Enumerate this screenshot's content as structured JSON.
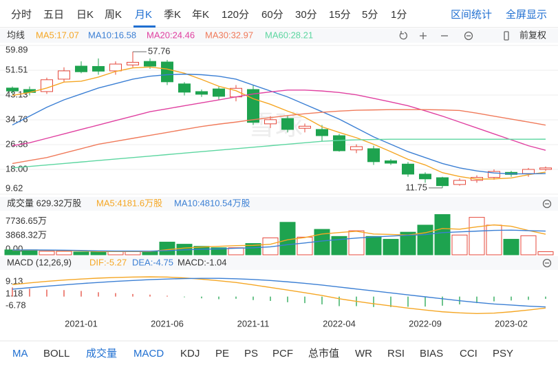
{
  "tabs": {
    "items": [
      "分时",
      "五日",
      "日K",
      "周K",
      "月K",
      "季K",
      "年K",
      "120分",
      "60分",
      "30分",
      "15分",
      "5分",
      "1分"
    ],
    "active": 4,
    "right": [
      "区间统计",
      "全屏显示"
    ]
  },
  "adjust": "前复权",
  "watermark": "雪球",
  "panel_title": "均线",
  "chart_data": [
    {
      "type": "candlestick",
      "categories": [
        null,
        null,
        null,
        null,
        "2021-01",
        null,
        null,
        null,
        null,
        "2021-06",
        null,
        null,
        null,
        null,
        "2021-11",
        null,
        null,
        null,
        null,
        "2022-04",
        null,
        null,
        null,
        null,
        "2022-09",
        null,
        null,
        null,
        null,
        "2023-02",
        null,
        null
      ],
      "open": [
        45.5,
        45,
        44.3,
        48.5,
        52.9,
        52.8,
        51.3,
        53.3,
        54.5,
        54.3,
        46.9,
        44.3,
        45.2,
        42.5,
        45,
        33.4,
        35.2,
        31.9,
        31.5,
        29.4,
        24.6,
        25,
        20.9,
        19.8,
        16.4,
        15.2,
        12.9,
        14.3,
        15.3,
        17,
        16.6,
        18
      ],
      "high": [
        46,
        46,
        49,
        52.5,
        54.5,
        55.5,
        54.5,
        57.76,
        55.5,
        55,
        47.5,
        45,
        46,
        46.5,
        46.5,
        36,
        36.2,
        33.5,
        33,
        30,
        26.5,
        26,
        21.5,
        20.5,
        17,
        15.5,
        15,
        16,
        18,
        17.5,
        18.5,
        19
      ],
      "low": [
        43.5,
        43,
        43.5,
        47.5,
        50.5,
        50,
        50,
        52.5,
        52,
        46.5,
        43,
        42.5,
        41.5,
        41,
        33,
        32,
        30.5,
        30.5,
        27.5,
        24,
        23.5,
        19.5,
        19.5,
        15.5,
        13.5,
        11.75,
        12.5,
        13.5,
        14.5,
        15.5,
        15.5,
        17.5
      ],
      "close": [
        44.5,
        44,
        48.3,
        51.3,
        51,
        51.2,
        53.6,
        54.2,
        52.9,
        47.6,
        44.1,
        43.4,
        42.7,
        45.4,
        33.9,
        34.8,
        31.5,
        32.6,
        29.4,
        24.3,
        25.7,
        20.6,
        20.1,
        16.4,
        14.8,
        12.5,
        14.3,
        15.3,
        17.3,
        16.3,
        18,
        18.5
      ],
      "up_color": "#e5473a",
      "down_color": "#1ea34f",
      "high_label_index": 7,
      "low_label_index": 25,
      "series": [
        {
          "name": "MA5:17.07",
          "color": "#f5a623",
          "values": [
            43,
            44,
            45.5,
            47.5,
            47.8,
            49.2,
            51.1,
            52.3,
            52.6,
            51.9,
            50.5,
            48.4,
            46.1,
            44.6,
            41.9,
            40,
            37.7,
            35.6,
            32.4,
            30.5,
            28.7,
            26.5,
            24,
            21.4,
            19.5,
            16.9,
            15.6,
            14.7,
            14.8,
            15.1,
            16.2,
            17.07
          ]
        },
        {
          "name": "MA10:16.58",
          "color": "#3b7fd4",
          "values": [
            33,
            36,
            39,
            41.5,
            43.5,
            45.5,
            47,
            48.5,
            49.5,
            50,
            50.2,
            50,
            49.5,
            48.5,
            46.5,
            44.5,
            42.5,
            40,
            37.5,
            35,
            32,
            29,
            26.5,
            24,
            22,
            20,
            18.5,
            17.5,
            16.8,
            16.5,
            16.5,
            16.58
          ]
        },
        {
          "name": "MA20:24.46",
          "color": "#e040a0",
          "values": [
            26,
            27,
            28.5,
            30,
            31.5,
            33,
            34.5,
            36,
            37.5,
            38.5,
            39.5,
            40.5,
            41.5,
            42.5,
            43.5,
            44.2,
            44.8,
            44.8,
            44.5,
            44,
            43.2,
            42,
            40.8,
            39.5,
            37.8,
            36,
            34,
            32,
            30,
            28,
            26,
            24.46
          ]
        },
        {
          "name": "MA30:32.97",
          "color": "#f07a5a",
          "values": [
            20,
            21,
            22,
            23.5,
            25,
            26.5,
            27.5,
            28.5,
            29.5,
            30.5,
            31.5,
            32.5,
            33.3,
            34,
            34.8,
            35.5,
            36.2,
            36.8,
            37.3,
            37.7,
            38,
            38.1,
            38.2,
            38.2,
            38.2,
            38.1,
            37.9,
            37,
            36,
            35,
            34,
            32.97
          ]
        },
        {
          "name": "MA60:28.21",
          "color": "#5cd6a0",
          "values": [
            18.5,
            19,
            19.5,
            20,
            20.5,
            21,
            21.5,
            22,
            22.5,
            23,
            23.5,
            24,
            24.5,
            25,
            25.5,
            26,
            26.5,
            27,
            27.5,
            27.8,
            28,
            28.1,
            28.2,
            28.2,
            28.2,
            28.2,
            28.2,
            28.2,
            28.2,
            28.2,
            28.2,
            28.21
          ]
        }
      ],
      "ylim": [
        9.62,
        59.89
      ],
      "yticks": [
        59.89,
        51.51,
        43.13,
        34.76,
        26.38,
        {
          "value": 18,
          "label": "18.00"
        },
        9.62
      ],
      "grid": true
    },
    {
      "type": "bar",
      "title": "成交量 629.32万股",
      "values": [
        1003,
        1003,
        717,
        717,
        573,
        573,
        717,
        717,
        717,
        2579,
        2150,
        1720,
        1433,
        1433,
        2293,
        3439,
        6592,
        3583,
        5159,
        3726,
        4872,
        3726,
        3153,
        4586,
        6019,
        8168,
        4012,
        7595,
        6019,
        3153,
        3869,
        629.32
      ],
      "series": [
        {
          "name": "MA5:4181.6万股",
          "color": "#f5a623",
          "values": [
            900,
            950,
            900,
            860,
            800,
            650,
            650,
            650,
            650,
            1030,
            1370,
            1580,
            1720,
            1860,
            1920,
            2140,
            3040,
            3500,
            4210,
            4520,
            4780,
            4210,
            4130,
            4010,
            4470,
            5330,
            5190,
            5670,
            6060,
            5790,
            4940,
            4181.6
          ]
        },
        {
          "name": "MA10:4810.54万股",
          "color": "#3b7fd4",
          "values": [
            950,
            980,
            960,
            930,
            880,
            800,
            760,
            750,
            740,
            850,
            1000,
            1120,
            1200,
            1330,
            1420,
            1620,
            2050,
            2400,
            2800,
            3100,
            3400,
            3600,
            3800,
            3950,
            4100,
            4500,
            4650,
            4800,
            4950,
            5000,
            4900,
            4810.54
          ]
        }
      ],
      "ylim": [
        0,
        8800
      ],
      "yticks": [
        {
          "value": 7736.65,
          "label": "7736.65万"
        },
        {
          "value": 3868.32,
          "label": "3868.32万"
        },
        {
          "value": 0,
          "label": "0.00"
        }
      ]
    },
    {
      "type": "macd",
      "title": "MACD (12,26,9)",
      "categories": [
        null,
        null,
        null,
        null,
        "2021-01",
        null,
        null,
        null,
        null,
        "2021-06",
        null,
        null,
        null,
        null,
        "2021-11",
        null,
        null,
        null,
        null,
        "2022-04",
        null,
        null,
        null,
        null,
        "2022-09",
        null,
        null,
        null,
        null,
        "2023-02",
        null,
        null
      ],
      "histogram": {
        "name": "MACD:-1.04",
        "values": [
          4.2,
          3.6,
          3.2,
          3,
          2.6,
          2,
          1.6,
          1.2,
          0.9,
          0.4,
          -0.3,
          -0.8,
          -1.2,
          -1,
          -1.6,
          -2,
          -2.6,
          -3,
          -3.6,
          -4.4,
          -4.4,
          -4.8,
          -4.8,
          -4.7,
          -4.6,
          -4.2,
          -3.6,
          -3,
          -2.2,
          -1.8,
          -1.5,
          -1.04
        ]
      },
      "series": [
        {
          "name": "DIF:-5.27",
          "color": "#f5a623",
          "values": [
            5.5,
            6.3,
            7,
            7.6,
            8.1,
            8.5,
            8.8,
            9,
            9.1,
            9,
            8.6,
            8,
            7.3,
            6.5,
            5.4,
            4.2,
            3,
            1.8,
            0.5,
            -1,
            -2.2,
            -3.3,
            -4.3,
            -5.3,
            -6.2,
            -7,
            -7.5,
            -7.8,
            -7.6,
            -7,
            -6.2,
            -5.27
          ]
        },
        {
          "name": "DEA:-4.75",
          "color": "#3b7fd4",
          "values": [
            3.4,
            4.1,
            4.8,
            5.4,
            6,
            6.5,
            7,
            7.4,
            7.8,
            8.1,
            8.3,
            8.4,
            8.4,
            8.2,
            7.9,
            7.4,
            6.8,
            6.1,
            5.3,
            4.4,
            3.5,
            2.6,
            1.7,
            0.8,
            -0.1,
            -1,
            -1.9,
            -2.7,
            -3.4,
            -3.9,
            -4.4,
            -4.75
          ]
        }
      ],
      "ylim": [
        -9.3,
        11
      ],
      "yticks": [
        9.13,
        1.18,
        -6.78
      ]
    }
  ],
  "bottom_tabs": {
    "items": [
      "MA",
      "BOLL",
      "成交量",
      "MACD",
      "KDJ",
      "PE",
      "PS",
      "PCF",
      "总市值",
      "WR",
      "RSI",
      "BIAS",
      "CCI",
      "PSY"
    ],
    "active": [
      0,
      2,
      3
    ]
  }
}
